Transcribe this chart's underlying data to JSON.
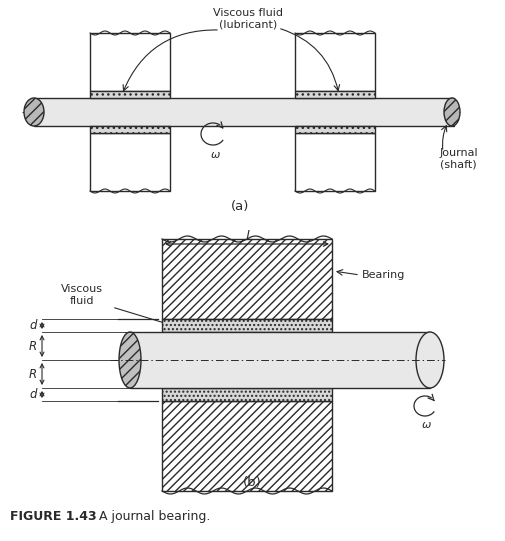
{
  "bg_color": "#ffffff",
  "line_color": "#2a2a2a",
  "figure_title": "FIGURE 1.43",
  "figure_caption": "   A journal bearing.",
  "label_a": "(a)",
  "label_b": "(b)",
  "label_viscous_fluid_lubricant": "Viscous fluid\n(lubricant)",
  "label_journal": "Journal\n(shaft)",
  "label_viscous_fluid": "Viscous\nfluid",
  "label_bearing": "Bearing",
  "label_l": "l",
  "label_d1": "d",
  "label_R1": "R",
  "label_R2": "R",
  "label_d2": "d",
  "label_omega1": "ω",
  "label_omega2": "ω",
  "shaft_color": "#e8e8e8",
  "bearing_fc": "#ffffff",
  "fluid_fc": "#d8d8d8"
}
